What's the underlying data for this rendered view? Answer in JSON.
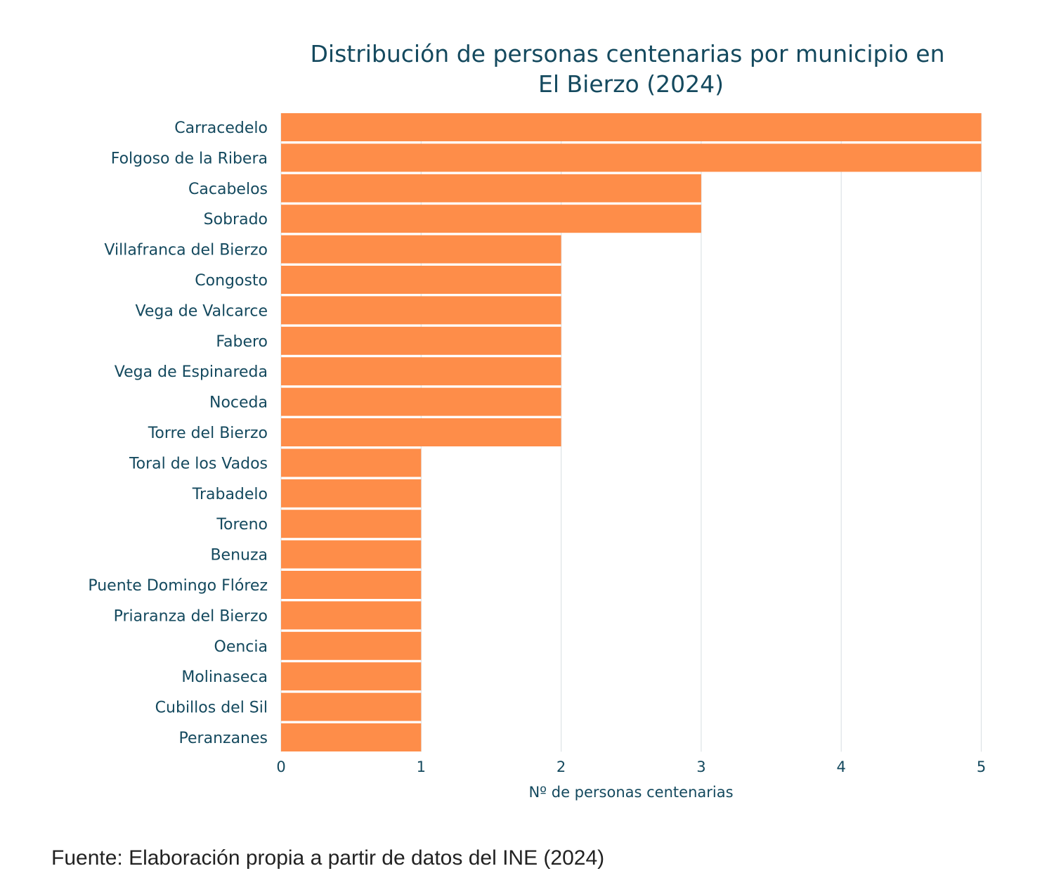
{
  "chart_data": {
    "type": "bar",
    "orientation": "horizontal",
    "title_lines": [
      "Distribución de personas centenarias por municipio en",
      "El Bierzo (2024)"
    ],
    "xlabel": "Nº de personas centenarias",
    "ylabel": "",
    "xlim": [
      0,
      5
    ],
    "xticks": [
      "0",
      "1",
      "2",
      "3",
      "4",
      "5"
    ],
    "grid": "vertical",
    "bar_color": "#fe8d49",
    "text_color": "#14495e",
    "categories": [
      "Carracedelo",
      "Folgoso de la Ribera",
      "Cacabelos",
      "Sobrado",
      "Villafranca del Bierzo",
      "Congosto",
      "Vega de Valcarce",
      "Fabero",
      "Vega de Espinareda",
      "Noceda",
      "Torre del Bierzo",
      "Toral de los Vados",
      "Trabadelo",
      "Toreno",
      "Benuza",
      "Puente Domingo Flórez",
      "Priaranza del Bierzo",
      "Oencia",
      "Molinaseca",
      "Cubillos del Sil",
      "Peranzanes"
    ],
    "values": [
      5,
      5,
      3,
      3,
      2,
      2,
      2,
      2,
      2,
      2,
      2,
      1,
      1,
      1,
      1,
      1,
      1,
      1,
      1,
      1,
      1
    ]
  },
  "source": "Fuente: Elaboración propia a partir de datos del INE (2024)"
}
